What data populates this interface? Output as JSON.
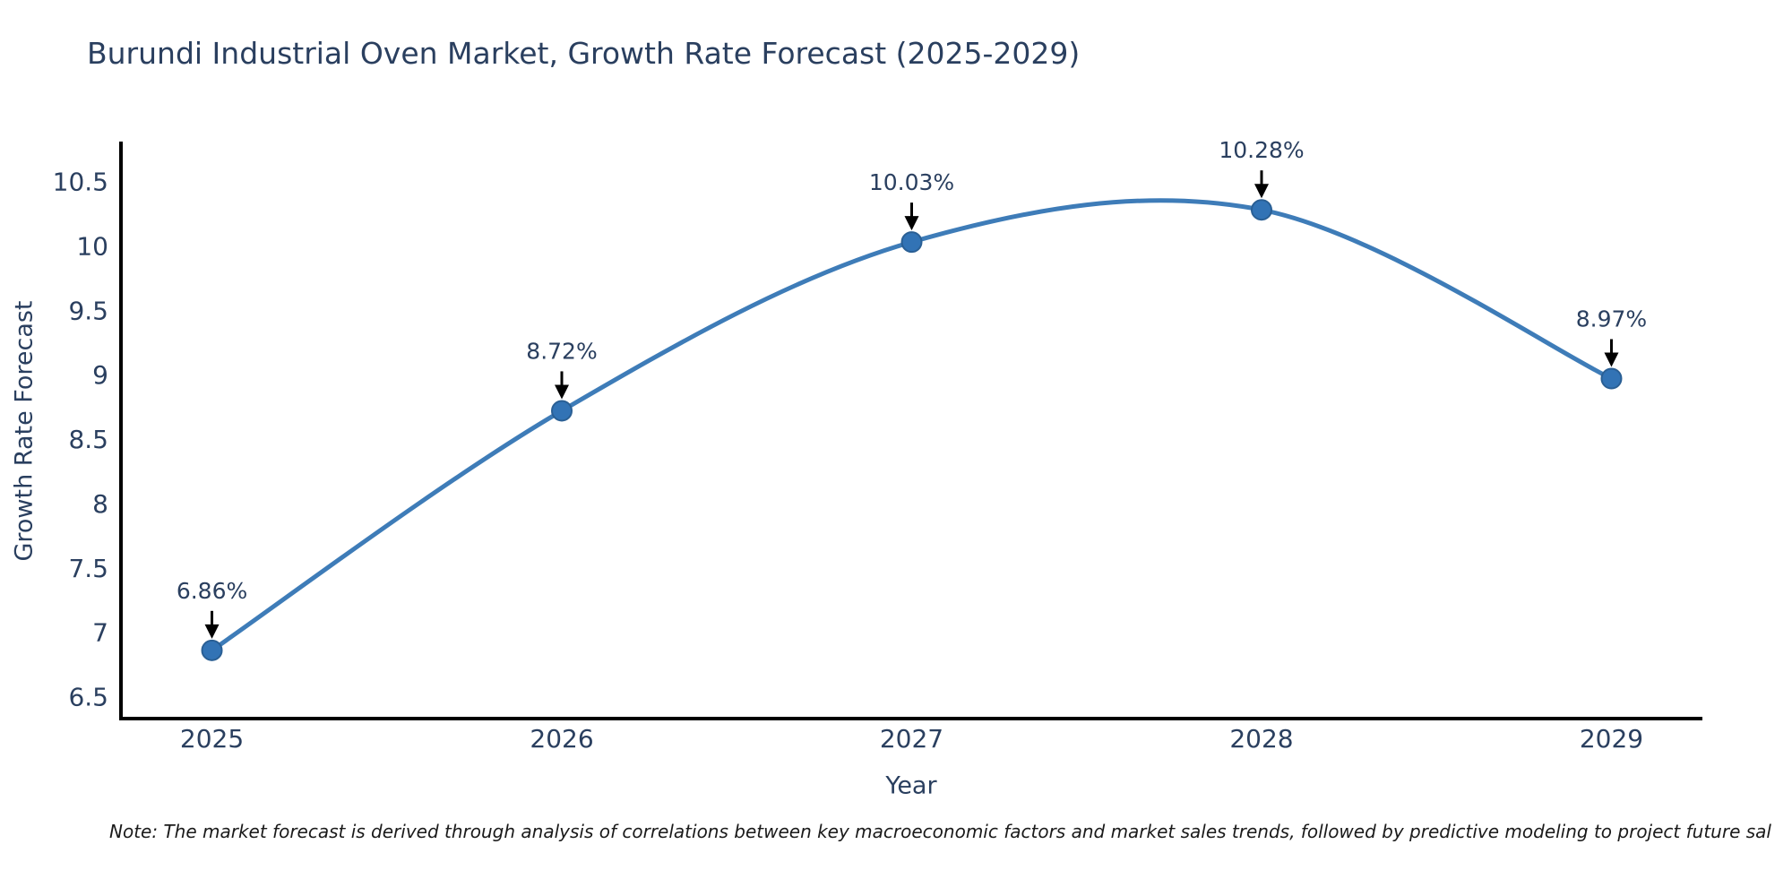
{
  "title": "Burundi Industrial Oven Market, Growth Rate Forecast (2025-2029)",
  "note": "Note: The market forecast is derived through analysis of correlations between key macroeconomic factors and market sales trends, followed by predictive modeling to project future sal",
  "chart_data": {
    "type": "line",
    "title": "Burundi Industrial Oven Market, Growth Rate Forecast (2025-2029)",
    "xlabel": "Year",
    "ylabel": "Growth Rate Forecast",
    "x": [
      2025,
      2026,
      2027,
      2028,
      2029
    ],
    "series": [
      {
        "name": "Growth Rate Forecast",
        "values": [
          6.86,
          8.72,
          10.03,
          10.28,
          8.97
        ]
      }
    ],
    "point_labels": [
      "6.86%",
      "8.72%",
      "10.03%",
      "10.28%",
      "8.97%"
    ],
    "xticks": [
      2025,
      2026,
      2027,
      2028,
      2029
    ],
    "yticks": [
      6.5,
      7,
      7.5,
      8,
      8.5,
      9,
      9.5,
      10,
      10.5
    ],
    "xlim": [
      2024.74,
      2029.26
    ],
    "ylim": [
      6.33,
      10.81
    ],
    "line_shape": "spline",
    "grid": false,
    "legend": false,
    "markers": true,
    "annotations_have_arrows": true,
    "colors": {
      "line": "#3e7cb8",
      "marker_fill": "#3273b5",
      "marker_edge": "#2a5f94",
      "text": "#2a3f5f",
      "axis": "#000000",
      "arrow": "#000000",
      "note_text": "#1a1a1a",
      "background": "#ffffff"
    }
  }
}
